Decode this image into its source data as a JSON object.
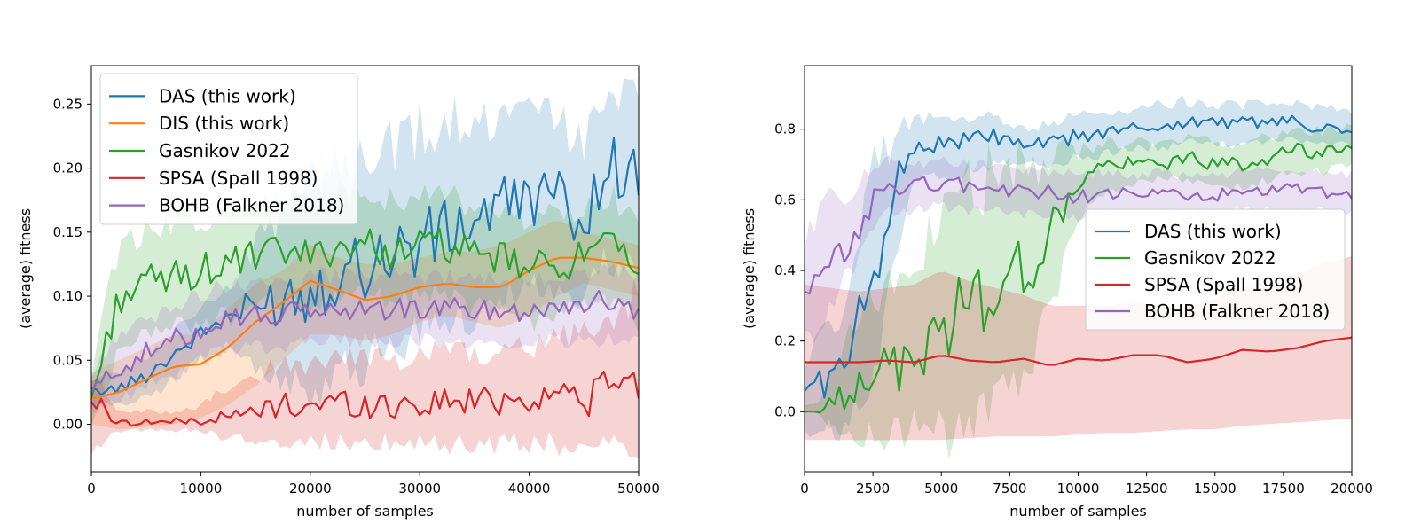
{
  "chart_data": [
    {
      "type": "line",
      "xlabel": "number of samples",
      "ylabel": "(average) fitness",
      "xlim": [
        0,
        50000
      ],
      "ylim": [
        -0.037,
        0.28
      ],
      "xticks": [
        0,
        10000,
        20000,
        30000,
        40000,
        50000
      ],
      "yticks": [
        0.0,
        0.05,
        0.1,
        0.15,
        0.2,
        0.25
      ],
      "ytick_labels": [
        "0.00",
        "0.05",
        "0.10",
        "0.15",
        "0.20",
        "0.25"
      ],
      "grid": false,
      "legend_position": "top-left",
      "legend_items": [
        {
          "name": "DAS (this work)",
          "color": "#1f77b4"
        },
        {
          "name": "DIS (this work)",
          "color": "#ff7f0e"
        },
        {
          "name": "Gasnikov 2022",
          "color": "#2ca02c"
        },
        {
          "name": "SPSA (Spall 1998)",
          "color": "#d62728"
        },
        {
          "name": "BOHB (Falkner 2018)",
          "color": "#9467bd"
        }
      ],
      "series": [
        {
          "name": "DAS (this work)",
          "color": "#1f77b4",
          "style": "jagged",
          "x": [
            0,
            2500,
            5000,
            7500,
            10000,
            12500,
            15000,
            17500,
            20000,
            22500,
            25000,
            27500,
            30000,
            32500,
            35000,
            37500,
            40000,
            42500,
            45000,
            47500,
            50000
          ],
          "y": [
            0.025,
            0.028,
            0.038,
            0.055,
            0.07,
            0.085,
            0.09,
            0.1,
            0.105,
            0.12,
            0.125,
            0.135,
            0.14,
            0.15,
            0.16,
            0.17,
            0.18,
            0.175,
            0.16,
            0.205,
            0.19
          ],
          "lower": [
            0.015,
            0.015,
            0.02,
            0.035,
            0.05,
            0.06,
            0.045,
            0.03,
            0.025,
            0.04,
            0.05,
            0.06,
            0.07,
            0.08,
            0.09,
            0.1,
            0.11,
            0.1,
            0.1,
            0.13,
            0.12
          ],
          "upper": [
            0.035,
            0.04,
            0.05,
            0.075,
            0.09,
            0.11,
            0.14,
            0.17,
            0.19,
            0.2,
            0.21,
            0.22,
            0.23,
            0.24,
            0.24,
            0.23,
            0.25,
            0.24,
            0.22,
            0.27,
            0.25
          ]
        },
        {
          "name": "DIS (this work)",
          "color": "#ff7f0e",
          "style": "smooth",
          "x": [
            0,
            2500,
            5000,
            7500,
            10000,
            12500,
            15000,
            17500,
            20000,
            22500,
            25000,
            27500,
            30000,
            32500,
            35000,
            37500,
            40000,
            42500,
            45000,
            47500,
            50000
          ],
          "y": [
            0.02,
            0.025,
            0.035,
            0.045,
            0.047,
            0.06,
            0.08,
            0.095,
            0.112,
            0.105,
            0.097,
            0.1,
            0.107,
            0.11,
            0.107,
            0.107,
            0.12,
            0.13,
            0.13,
            0.127,
            0.122
          ],
          "lower": [
            0.0,
            -0.004,
            -0.002,
            0.0,
            0.005,
            0.015,
            0.03,
            0.05,
            0.07,
            0.07,
            0.065,
            0.07,
            0.08,
            0.085,
            0.08,
            0.075,
            0.085,
            0.1,
            0.11,
            0.105,
            0.1
          ],
          "upper": [
            0.04,
            0.05,
            0.06,
            0.07,
            0.07,
            0.09,
            0.11,
            0.12,
            0.14,
            0.13,
            0.125,
            0.125,
            0.13,
            0.135,
            0.135,
            0.14,
            0.15,
            0.16,
            0.15,
            0.145,
            0.14
          ]
        },
        {
          "name": "Gasnikov 2022",
          "color": "#2ca02c",
          "style": "jagged",
          "x": [
            0,
            2500,
            5000,
            7500,
            10000,
            12500,
            15000,
            17500,
            20000,
            22500,
            25000,
            27500,
            30000,
            32500,
            35000,
            37500,
            40000,
            42500,
            45000,
            47500,
            50000
          ],
          "y": [
            0.02,
            0.1,
            0.11,
            0.115,
            0.12,
            0.125,
            0.13,
            0.135,
            0.13,
            0.14,
            0.14,
            0.135,
            0.14,
            0.14,
            0.13,
            0.13,
            0.12,
            0.125,
            0.13,
            0.14,
            0.115
          ],
          "lower": [
            0.0,
            0.06,
            0.07,
            0.075,
            0.08,
            0.085,
            0.09,
            0.095,
            0.09,
            0.1,
            0.1,
            0.095,
            0.1,
            0.1,
            0.09,
            0.09,
            0.08,
            0.085,
            0.09,
            0.1,
            0.08
          ],
          "upper": [
            0.04,
            0.14,
            0.15,
            0.155,
            0.16,
            0.165,
            0.17,
            0.175,
            0.17,
            0.18,
            0.18,
            0.175,
            0.18,
            0.18,
            0.17,
            0.17,
            0.16,
            0.165,
            0.17,
            0.18,
            0.15
          ]
        },
        {
          "name": "SPSA (Spall 1998)",
          "color": "#d62728",
          "style": "jagged",
          "x": [
            0,
            2500,
            5000,
            7500,
            10000,
            12500,
            15000,
            17500,
            20000,
            22500,
            25000,
            27500,
            30000,
            32500,
            35000,
            37500,
            40000,
            42500,
            45000,
            47500,
            50000
          ],
          "y": [
            0.02,
            0.001,
            0.002,
            0.002,
            0.003,
            0.005,
            0.01,
            0.015,
            0.015,
            0.018,
            0.015,
            0.015,
            0.016,
            0.018,
            0.018,
            0.02,
            0.02,
            0.025,
            0.02,
            0.03,
            0.032
          ],
          "lower": [
            -0.02,
            -0.005,
            -0.005,
            -0.005,
            -0.005,
            -0.01,
            -0.01,
            -0.012,
            -0.012,
            -0.014,
            -0.015,
            -0.015,
            -0.015,
            -0.015,
            -0.015,
            -0.015,
            -0.015,
            -0.015,
            -0.015,
            -0.02,
            -0.02
          ],
          "upper": [
            0.04,
            0.01,
            0.01,
            0.01,
            0.015,
            0.03,
            0.04,
            0.045,
            0.045,
            0.05,
            0.05,
            0.05,
            0.055,
            0.055,
            0.055,
            0.06,
            0.06,
            0.065,
            0.07,
            0.08,
            0.1
          ]
        },
        {
          "name": "BOHB (Falkner 2018)",
          "color": "#9467bd",
          "style": "jagged",
          "x": [
            0,
            2500,
            5000,
            7500,
            10000,
            12500,
            15000,
            17500,
            20000,
            22500,
            25000,
            27500,
            30000,
            32500,
            35000,
            37500,
            40000,
            42500,
            45000,
            47500,
            50000
          ],
          "y": [
            0.025,
            0.045,
            0.055,
            0.065,
            0.075,
            0.085,
            0.085,
            0.085,
            0.09,
            0.088,
            0.09,
            0.09,
            0.09,
            0.09,
            0.09,
            0.088,
            0.09,
            0.092,
            0.095,
            0.095,
            0.09
          ],
          "lower": [
            0.01,
            0.02,
            0.03,
            0.04,
            0.05,
            0.06,
            0.06,
            0.06,
            0.065,
            0.065,
            0.065,
            0.065,
            0.065,
            0.065,
            0.065,
            0.065,
            0.065,
            0.065,
            0.065,
            0.065,
            0.065
          ],
          "upper": [
            0.04,
            0.07,
            0.08,
            0.09,
            0.1,
            0.11,
            0.11,
            0.11,
            0.115,
            0.115,
            0.115,
            0.115,
            0.115,
            0.115,
            0.115,
            0.115,
            0.115,
            0.115,
            0.12,
            0.12,
            0.115
          ]
        }
      ]
    },
    {
      "type": "line",
      "xlabel": "number of samples",
      "ylabel": "(average) fitness",
      "xlim": [
        0,
        20000
      ],
      "ylim": [
        -0.17,
        0.98
      ],
      "xticks": [
        0,
        2500,
        5000,
        7500,
        10000,
        12500,
        15000,
        17500,
        20000
      ],
      "yticks": [
        0.0,
        0.2,
        0.4,
        0.6,
        0.8
      ],
      "ytick_labels": [
        "0.0",
        "0.2",
        "0.4",
        "0.6",
        "0.8"
      ],
      "grid": false,
      "legend_position": "center-right",
      "legend_items": [
        {
          "name": "DAS (this work)",
          "color": "#1f77b4"
        },
        {
          "name": "Gasnikov 2022",
          "color": "#2ca02c"
        },
        {
          "name": "SPSA (Spall 1998)",
          "color": "#d62728"
        },
        {
          "name": "BOHB (Falkner 2018)",
          "color": "#9467bd"
        }
      ],
      "series": [
        {
          "name": "DAS (this work)",
          "color": "#1f77b4",
          "style": "jagged",
          "x": [
            0,
            500,
            1000,
            1500,
            2000,
            2500,
            3000,
            3500,
            4000,
            5000,
            6000,
            7000,
            8000,
            9000,
            10000,
            11000,
            12000,
            13000,
            14000,
            15000,
            16000,
            17000,
            18000,
            19000,
            20000
          ],
          "y": [
            0.07,
            0.08,
            0.1,
            0.12,
            0.25,
            0.4,
            0.55,
            0.68,
            0.75,
            0.76,
            0.77,
            0.78,
            0.75,
            0.76,
            0.78,
            0.79,
            0.8,
            0.81,
            0.82,
            0.82,
            0.82,
            0.82,
            0.82,
            0.8,
            0.79
          ],
          "lower": [
            -0.05,
            -0.07,
            -0.05,
            -0.05,
            0.0,
            0.1,
            0.3,
            0.5,
            0.65,
            0.67,
            0.68,
            0.7,
            0.7,
            0.7,
            0.72,
            0.73,
            0.74,
            0.75,
            0.76,
            0.76,
            0.76,
            0.77,
            0.77,
            0.76,
            0.75
          ],
          "upper": [
            0.15,
            0.2,
            0.25,
            0.3,
            0.45,
            0.7,
            0.75,
            0.8,
            0.82,
            0.83,
            0.83,
            0.84,
            0.8,
            0.82,
            0.84,
            0.85,
            0.86,
            0.87,
            0.88,
            0.87,
            0.87,
            0.87,
            0.87,
            0.86,
            0.85
          ]
        },
        {
          "name": "Gasnikov 2022",
          "color": "#2ca02c",
          "style": "jagged",
          "x": [
            0,
            500,
            1000,
            1500,
            2000,
            2500,
            3000,
            3500,
            4000,
            5000,
            6000,
            7000,
            8000,
            9000,
            10000,
            11000,
            12000,
            13000,
            14000,
            15000,
            16000,
            17000,
            18000,
            19000,
            20000
          ],
          "y": [
            0.0,
            0.0,
            0.02,
            0.05,
            0.1,
            0.12,
            0.12,
            0.12,
            0.14,
            0.24,
            0.3,
            0.35,
            0.4,
            0.5,
            0.65,
            0.7,
            0.7,
            0.7,
            0.72,
            0.7,
            0.7,
            0.72,
            0.74,
            0.73,
            0.76
          ],
          "lower": [
            0.0,
            0.0,
            -0.05,
            -0.08,
            -0.08,
            -0.07,
            -0.07,
            -0.05,
            -0.05,
            -0.06,
            -0.05,
            0.0,
            0.1,
            0.3,
            0.55,
            0.62,
            0.64,
            0.66,
            0.66,
            0.64,
            0.64,
            0.66,
            0.68,
            0.68,
            0.7
          ],
          "upper": [
            0.02,
            0.02,
            0.1,
            0.2,
            0.28,
            0.32,
            0.35,
            0.38,
            0.4,
            0.55,
            0.62,
            0.68,
            0.7,
            0.72,
            0.74,
            0.76,
            0.76,
            0.76,
            0.78,
            0.76,
            0.76,
            0.78,
            0.8,
            0.79,
            0.82
          ]
        },
        {
          "name": "SPSA (Spall 1998)",
          "color": "#d62728",
          "style": "smooth",
          "x": [
            0,
            1000,
            2000,
            3000,
            4000,
            5000,
            6000,
            7000,
            8000,
            9000,
            10000,
            11000,
            12000,
            13000,
            14000,
            15000,
            16000,
            17000,
            18000,
            19000,
            20000
          ],
          "y": [
            0.14,
            0.14,
            0.14,
            0.145,
            0.14,
            0.16,
            0.145,
            0.14,
            0.15,
            0.13,
            0.15,
            0.145,
            0.16,
            0.16,
            0.14,
            0.15,
            0.175,
            0.17,
            0.18,
            0.2,
            0.21
          ],
          "lower": [
            -0.08,
            -0.08,
            -0.08,
            -0.08,
            -0.08,
            -0.08,
            -0.075,
            -0.07,
            -0.07,
            -0.07,
            -0.065,
            -0.06,
            -0.06,
            -0.055,
            -0.05,
            -0.05,
            -0.04,
            -0.035,
            -0.03,
            -0.025,
            -0.02
          ],
          "upper": [
            0.36,
            0.35,
            0.34,
            0.35,
            0.36,
            0.4,
            0.37,
            0.35,
            0.33,
            0.3,
            0.3,
            0.3,
            0.31,
            0.3,
            0.3,
            0.32,
            0.35,
            0.37,
            0.39,
            0.42,
            0.44
          ]
        },
        {
          "name": "BOHB (Falkner 2018)",
          "color": "#9467bd",
          "style": "jagged",
          "x": [
            0,
            500,
            1000,
            1500,
            2000,
            2500,
            3000,
            3500,
            4000,
            5000,
            6000,
            7000,
            8000,
            9000,
            10000,
            11000,
            12000,
            13000,
            14000,
            15000,
            16000,
            17000,
            18000,
            19000,
            20000
          ],
          "y": [
            0.31,
            0.35,
            0.42,
            0.45,
            0.5,
            0.6,
            0.65,
            0.63,
            0.64,
            0.65,
            0.64,
            0.63,
            0.62,
            0.62,
            0.61,
            0.62,
            0.61,
            0.62,
            0.61,
            0.61,
            0.62,
            0.62,
            0.63,
            0.62,
            0.61
          ],
          "lower": [
            0.2,
            0.2,
            0.3,
            0.38,
            0.43,
            0.53,
            0.58,
            0.56,
            0.57,
            0.58,
            0.57,
            0.57,
            0.56,
            0.56,
            0.55,
            0.56,
            0.56,
            0.56,
            0.56,
            0.56,
            0.57,
            0.57,
            0.57,
            0.57,
            0.56
          ],
          "upper": [
            0.47,
            0.55,
            0.6,
            0.62,
            0.64,
            0.7,
            0.72,
            0.7,
            0.7,
            0.71,
            0.7,
            0.69,
            0.68,
            0.68,
            0.67,
            0.68,
            0.67,
            0.68,
            0.67,
            0.67,
            0.68,
            0.68,
            0.69,
            0.68,
            0.67
          ]
        }
      ]
    }
  ]
}
